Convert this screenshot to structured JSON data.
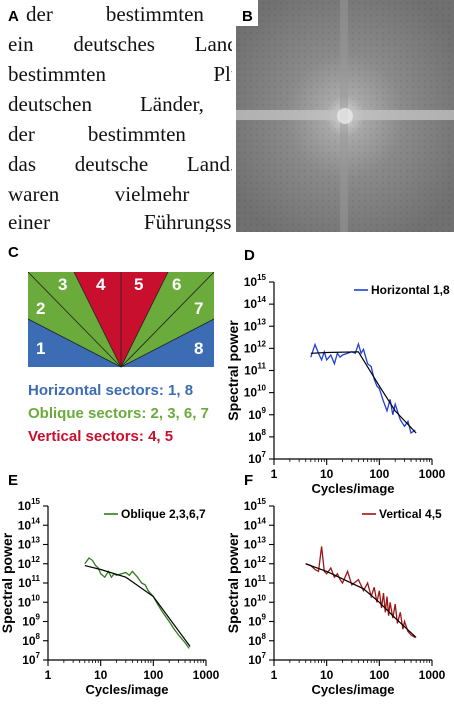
{
  "panel_labels": {
    "a": "A",
    "b": "B",
    "c": "C",
    "d": "D",
    "e": "E",
    "f": "F"
  },
  "text_excerpt": [
    "der bestimmten Singu",
    "ein deutsches Land o",
    "bestimmten Pluralfor",
    "deutschen Länder, nich",
    "der bestimmten Singu",
    "das deutsche Land. C",
    "waren vielmehr Länd",
    "einer Führungsschicht,"
  ],
  "sectors": {
    "numbers": [
      "1",
      "2",
      "3",
      "4",
      "5",
      "6",
      "7",
      "8"
    ],
    "legend": [
      {
        "text": "Horizontal sectors: 1, 8",
        "color": "#3b6cb4"
      },
      {
        "text": "Oblique sectors: 2, 3, 6, 7",
        "color": "#6aab3c"
      },
      {
        "text": "Vertical sectors: 4, 5",
        "color": "#c8102e"
      }
    ],
    "colors": {
      "horizontal": "#3b6cb4",
      "oblique": "#6aab3c",
      "vertical": "#c8102e"
    }
  },
  "chart_data": [
    {
      "panel": "D",
      "type": "line",
      "xlabel": "Cycles/image",
      "ylabel": "Spectral power",
      "xscale": "log",
      "yscale": "log",
      "xlim": [
        1,
        1000
      ],
      "ylim": [
        10000000,
        1000000000000000
      ],
      "x_tick_labels": [
        "1",
        "10",
        "100",
        "1000"
      ],
      "y_tick_exponents": [
        "7",
        "8",
        "9",
        "10",
        "11",
        "12",
        "13",
        "14",
        "15"
      ],
      "legend_position": "top-right",
      "series": [
        {
          "name": "Horizontal 1,8",
          "color": "#1f3fd6",
          "x": [
            5,
            6,
            7,
            8,
            9,
            10,
            12,
            14,
            16,
            18,
            20,
            25,
            30,
            35,
            40,
            45,
            50,
            60,
            70,
            80,
            90,
            100,
            120,
            140,
            160,
            180,
            200,
            250,
            300,
            350,
            400,
            480
          ],
          "y": [
            400000000000,
            1500000000000,
            600000000000,
            300000000000,
            700000000000,
            300000000000,
            500000000000,
            200000000000,
            600000000000,
            400000000000,
            500000000000,
            600000000000,
            700000000000,
            600000000000,
            1600000000000,
            600000000000,
            900000000000,
            200000000000,
            150000000000,
            40000000000,
            20000000000,
            15000000000,
            4000000000,
            1500000000,
            5000000000,
            1000000000,
            3000000000,
            600000000,
            300000000,
            500000000,
            150000000,
            200000000
          ]
        }
      ],
      "fit": {
        "x": [
          5,
          10,
          40,
          100,
          200,
          500
        ],
        "y": [
          600000000000,
          650000000000,
          700000000000,
          20000000000,
          1500000000,
          150000000
        ]
      }
    },
    {
      "panel": "E",
      "type": "line",
      "xlabel": "Cycles/image",
      "ylabel": "Spectral power",
      "xscale": "log",
      "yscale": "log",
      "xlim": [
        1,
        1000
      ],
      "ylim": [
        10000000,
        1000000000000000
      ],
      "x_tick_labels": [
        "1",
        "10",
        "100",
        "1000"
      ],
      "y_tick_exponents": [
        "7",
        "8",
        "9",
        "10",
        "11",
        "12",
        "13",
        "14",
        "15"
      ],
      "legend_position": "top-right",
      "series": [
        {
          "name": "Oblique 2,3,6,7",
          "color": "#2e7d1e",
          "x": [
            5,
            6,
            7,
            8,
            9,
            10,
            12,
            14,
            16,
            18,
            20,
            25,
            30,
            35,
            40,
            50,
            60,
            70,
            80,
            100,
            120,
            150,
            200,
            250,
            300,
            400,
            480
          ],
          "y": [
            1000000000000,
            2000000000000,
            1500000000000,
            800000000000,
            600000000000,
            300000000000,
            200000000000,
            400000000000,
            200000000000,
            300000000000,
            250000000000,
            300000000000,
            350000000000,
            250000000000,
            400000000000,
            200000000000,
            100000000000,
            80000000000,
            40000000000,
            20000000000,
            8000000000,
            3000000000,
            1000000000,
            400000000,
            200000000,
            80000000,
            40000000
          ]
        }
      ],
      "fit": {
        "x": [
          5,
          10,
          30,
          100,
          200,
          500
        ],
        "y": [
          800000000000,
          500000000000,
          200000000000,
          20000000000,
          1500000000,
          50000000
        ]
      }
    },
    {
      "panel": "F",
      "type": "line",
      "xlabel": "Cycles/image",
      "ylabel": "Spectral power",
      "xscale": "log",
      "yscale": "log",
      "xlim": [
        1,
        1000
      ],
      "ylim": [
        10000000,
        1000000000000000
      ],
      "x_tick_labels": [
        "1",
        "10",
        "100",
        "1000"
      ],
      "y_tick_exponents": [
        "7",
        "8",
        "9",
        "10",
        "11",
        "12",
        "13",
        "14",
        "15"
      ],
      "legend_position": "top-right",
      "series": [
        {
          "name": "Vertical 4,5",
          "color": "#a01414",
          "x": [
            4,
            5,
            6,
            7,
            8,
            9,
            10,
            12,
            14,
            16,
            18,
            20,
            25,
            30,
            40,
            50,
            60,
            70,
            80,
            90,
            100,
            110,
            120,
            130,
            140,
            150,
            160,
            180,
            200,
            220,
            250,
            280,
            300,
            350,
            400,
            480
          ],
          "y": [
            1000000000000,
            800000000000,
            500000000000,
            400000000000,
            8000000000000,
            400000000000,
            300000000000,
            600000000000,
            200000000000,
            300000000000,
            150000000000,
            100000000000,
            400000000000,
            80000000000,
            150000000000,
            40000000000,
            100000000000,
            20000000000,
            60000000000,
            10000000000,
            40000000000,
            5000000000,
            30000000000,
            3000000000,
            20000000000,
            2000000000,
            10000000000,
            1500000000,
            8000000000,
            800000000,
            3000000000,
            400000000,
            1000000000,
            300000000,
            200000000,
            150000000
          ]
        }
      ],
      "fit": {
        "x": [
          4,
          10,
          50,
          100,
          200,
          500
        ],
        "y": [
          1000000000000,
          400000000000,
          50000000000,
          10000000000,
          1500000000,
          150000000
        ]
      }
    }
  ]
}
